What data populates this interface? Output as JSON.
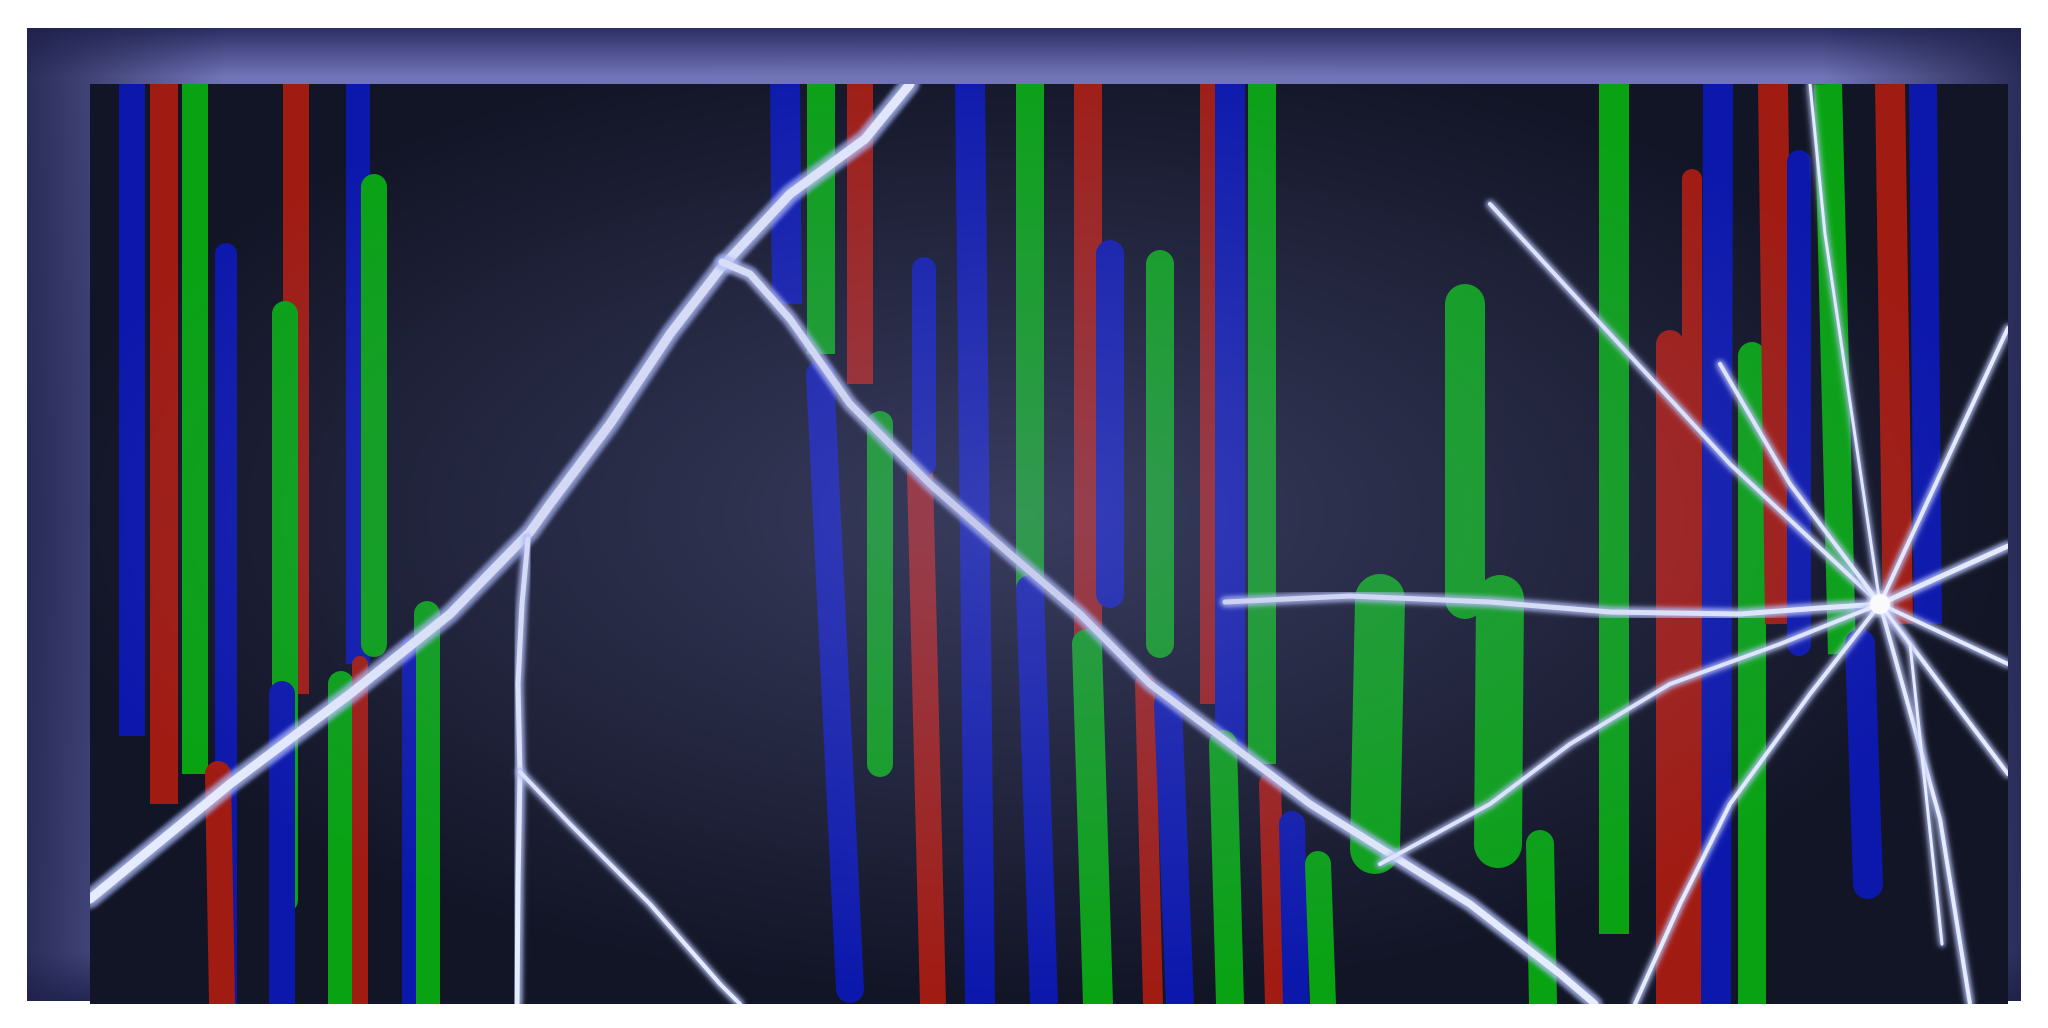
{
  "colors": {
    "red": "#a01b12",
    "green": "#08a213",
    "blue": "#0c18ac",
    "screen_background": "#121526",
    "bezel": "#6a6db1",
    "crack": "#e6ecff"
  },
  "icons": {
    "screen": "cracked-screen",
    "damage": "impact-point"
  }
}
